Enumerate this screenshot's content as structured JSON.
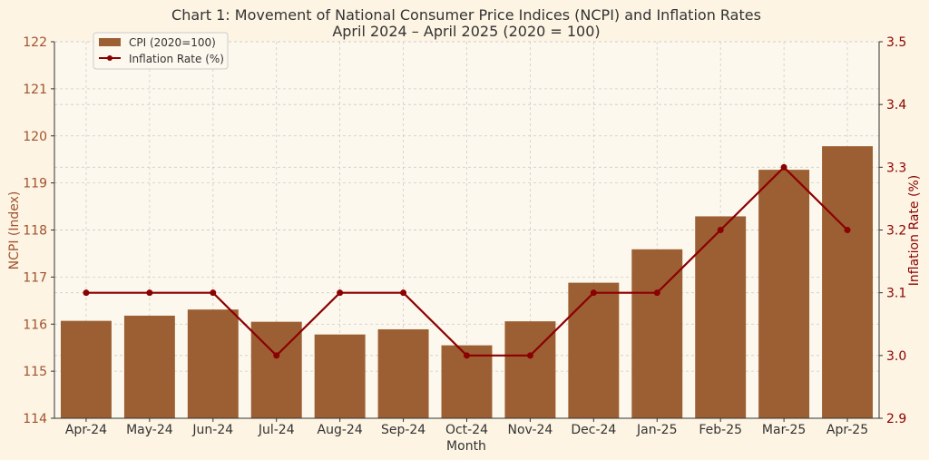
{
  "colors": {
    "background": "#fdf4e3",
    "plot_background": "#fdf8ee",
    "bar": "#9c5f33",
    "line": "#8b0000",
    "left_axis": "#a0522d",
    "right_axis": "#8b0000",
    "grid": "#cccccc",
    "title": "#333333"
  },
  "chart_data": {
    "type": "bar",
    "title": "Chart 1: Movement of National Consumer Price Indices (NCPI) and Inflation Rates",
    "subtitle": "April 2024 – April 2025 (2020 = 100)",
    "xlabel": "Month",
    "ylabel": "NCPI (Index)",
    "y2label": "Inflation Rate (%)",
    "categories": [
      "Apr-24",
      "May-24",
      "Jun-24",
      "Jul-24",
      "Aug-24",
      "Sep-24",
      "Oct-24",
      "Nov-24",
      "Dec-24",
      "Jan-25",
      "Feb-25",
      "Mar-25",
      "Apr-25"
    ],
    "ylim": [
      114,
      122
    ],
    "y_ticks": [
      114,
      115,
      116,
      117,
      118,
      119,
      120,
      121,
      122
    ],
    "y2lim": [
      2.9,
      3.5
    ],
    "y2_ticks": [
      "2.9",
      "3.0",
      "3.1",
      "3.2",
      "3.3",
      "3.4",
      "3.5"
    ],
    "grid": true,
    "legend_position": "top-left",
    "series": [
      {
        "name": "CPI (2020=100)",
        "type": "bar",
        "axis": "left",
        "values": [
          116.07,
          116.18,
          116.31,
          116.05,
          115.78,
          115.89,
          115.55,
          116.06,
          116.88,
          117.59,
          118.29,
          119.28,
          119.78
        ]
      },
      {
        "name": "Inflation Rate (%)",
        "type": "line",
        "axis": "right",
        "values": [
          3.1,
          3.1,
          3.1,
          3.0,
          3.1,
          3.1,
          3.0,
          3.0,
          3.1,
          3.1,
          3.2,
          3.3,
          3.2
        ]
      }
    ]
  }
}
